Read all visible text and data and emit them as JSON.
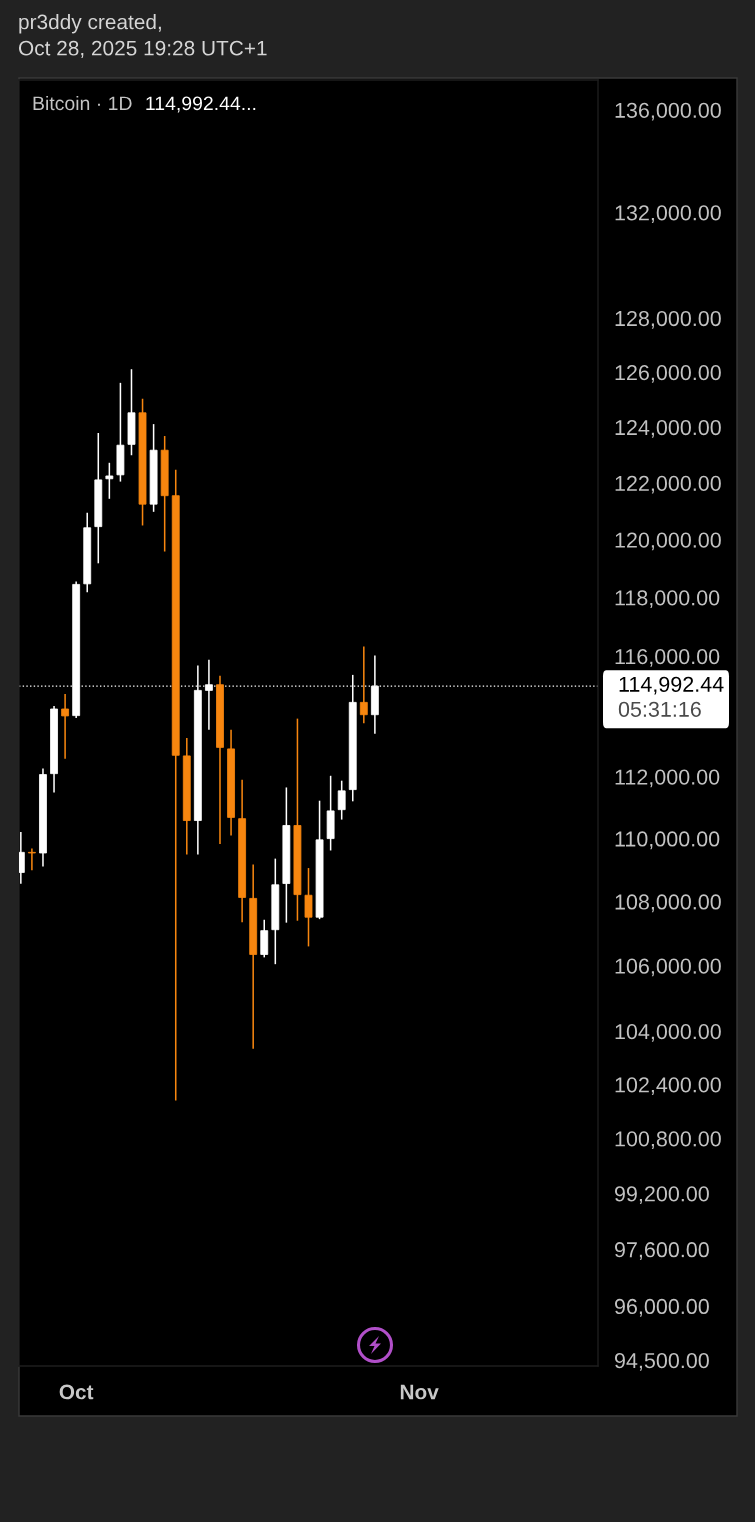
{
  "chart_data": {
    "type": "candlestick",
    "title": "Bitcoin · 1D",
    "annotations": [
      "pr3ddy created,\nOct 28, 2025 19:28 UTC+1",
      "114,992.44...",
      "05:31:16"
    ],
    "x": [
      "2025-09-26",
      "2025-09-27",
      "2025-09-28",
      "2025-09-29",
      "2025-09-30",
      "2025-10-01",
      "2025-10-02",
      "2025-10-03",
      "2025-10-04",
      "2025-10-05",
      "2025-10-06",
      "2025-10-07",
      "2025-10-08",
      "2025-10-09",
      "2025-10-10",
      "2025-10-11",
      "2025-10-12",
      "2025-10-13",
      "2025-10-14",
      "2025-10-15",
      "2025-10-16",
      "2025-10-17",
      "2025-10-18",
      "2025-10-19",
      "2025-10-20",
      "2025-10-21",
      "2025-10-22",
      "2025-10-23",
      "2025-10-24",
      "2025-10-25",
      "2025-10-26",
      "2025-10-27",
      "2025-10-28"
    ],
    "ohlc": [
      [
        108920,
        110210,
        108560,
        109560
      ],
      [
        109560,
        109680,
        108990,
        109540
      ],
      [
        109540,
        112270,
        109110,
        112070
      ],
      [
        112100,
        114330,
        111490,
        114230
      ],
      [
        114230,
        114730,
        112590,
        114000
      ],
      [
        114010,
        118550,
        113930,
        118450
      ],
      [
        118470,
        120950,
        118180,
        120420
      ],
      [
        120460,
        123790,
        119180,
        122110
      ],
      [
        122150,
        122720,
        121440,
        122250
      ],
      [
        122290,
        125610,
        122050,
        123350
      ],
      [
        123380,
        126110,
        122990,
        124520
      ],
      [
        124520,
        125030,
        120500,
        121250
      ],
      [
        121250,
        124110,
        120980,
        123170
      ],
      [
        123170,
        123680,
        119590,
        121550
      ],
      [
        121550,
        122470,
        101920,
        112700
      ],
      [
        112680,
        113270,
        109490,
        110580
      ],
      [
        110580,
        115690,
        109490,
        114850
      ],
      [
        114850,
        115880,
        113540,
        115040
      ],
      [
        115040,
        115340,
        109830,
        112960
      ],
      [
        112910,
        113540,
        110100,
        110680
      ],
      [
        110640,
        111900,
        107350,
        108130
      ],
      [
        108100,
        109170,
        103470,
        106350
      ],
      [
        106350,
        107430,
        106260,
        107090
      ],
      [
        107120,
        109360,
        106050,
        108530
      ],
      [
        108570,
        111650,
        107340,
        110420
      ],
      [
        110420,
        113910,
        107400,
        108220
      ],
      [
        108200,
        109060,
        106600,
        107510
      ],
      [
        107510,
        111220,
        107450,
        109960
      ],
      [
        110000,
        112030,
        109620,
        110890
      ],
      [
        110930,
        111870,
        110610,
        111540
      ],
      [
        111580,
        115370,
        111200,
        114450
      ],
      [
        114450,
        116330,
        113760,
        114040
      ],
      [
        114040,
        116020,
        113410,
        114992.44
      ]
    ],
    "colors": [
      "#ffffff",
      "#f7860f",
      "#ffffff",
      "#ffffff",
      "#f7860f",
      "#ffffff",
      "#ffffff",
      "#ffffff",
      "#ffffff",
      "#ffffff",
      "#ffffff",
      "#f7860f",
      "#ffffff",
      "#f7860f",
      "#f7860f",
      "#f7860f",
      "#ffffff",
      "#ffffff",
      "#f7860f",
      "#f7860f",
      "#f7860f",
      "#f7860f",
      "#ffffff",
      "#ffffff",
      "#ffffff",
      "#f7860f",
      "#f7860f",
      "#ffffff",
      "#ffffff",
      "#ffffff",
      "#ffffff",
      "#f7860f",
      "#ffffff"
    ],
    "xlim": [
      "2025-09-25T20:00",
      "2025-11-17T04:00"
    ],
    "xticks": [
      {
        "value": "2025-10-01",
        "label": "Oct"
      },
      {
        "value": "2025-11-01",
        "label": "Nov"
      }
    ],
    "log": true,
    "ylim": [
      94340,
      137190
    ],
    "yticks": [
      {
        "value": 136000,
        "label": "136,000.00"
      },
      {
        "value": 132000,
        "label": "132,000.00"
      },
      {
        "value": 128000,
        "label": "128,000.00"
      },
      {
        "value": 126000,
        "label": "126,000.00"
      },
      {
        "value": 124000,
        "label": "124,000.00"
      },
      {
        "value": 122000,
        "label": "122,000.00"
      },
      {
        "value": 120000,
        "label": "120,000.00"
      },
      {
        "value": 118000,
        "label": "118,000.00"
      },
      {
        "value": 116000,
        "label": "116,000.00"
      },
      {
        "value": 112000,
        "label": "112,000.00"
      },
      {
        "value": 110000,
        "label": "110,000.00"
      },
      {
        "value": 108000,
        "label": "108,000.00"
      },
      {
        "value": 106000,
        "label": "106,000.00"
      },
      {
        "value": 104000,
        "label": "104,000.00"
      },
      {
        "value": 102400,
        "label": "102,400.00"
      },
      {
        "value": 100800,
        "label": "100,800.00"
      },
      {
        "value": 99200,
        "label": "99,200.00"
      },
      {
        "value": 97600,
        "label": "97,600.00"
      },
      {
        "value": 96000,
        "label": "96,000.00"
      },
      {
        "value": 94500,
        "label": "94,500.00"
      }
    ],
    "ref_lines": [
      {
        "axis": "y",
        "value": 114992.44,
        "label": "114,992.44",
        "color": "#ffffff",
        "line_style": "dotted"
      }
    ]
  }
}
